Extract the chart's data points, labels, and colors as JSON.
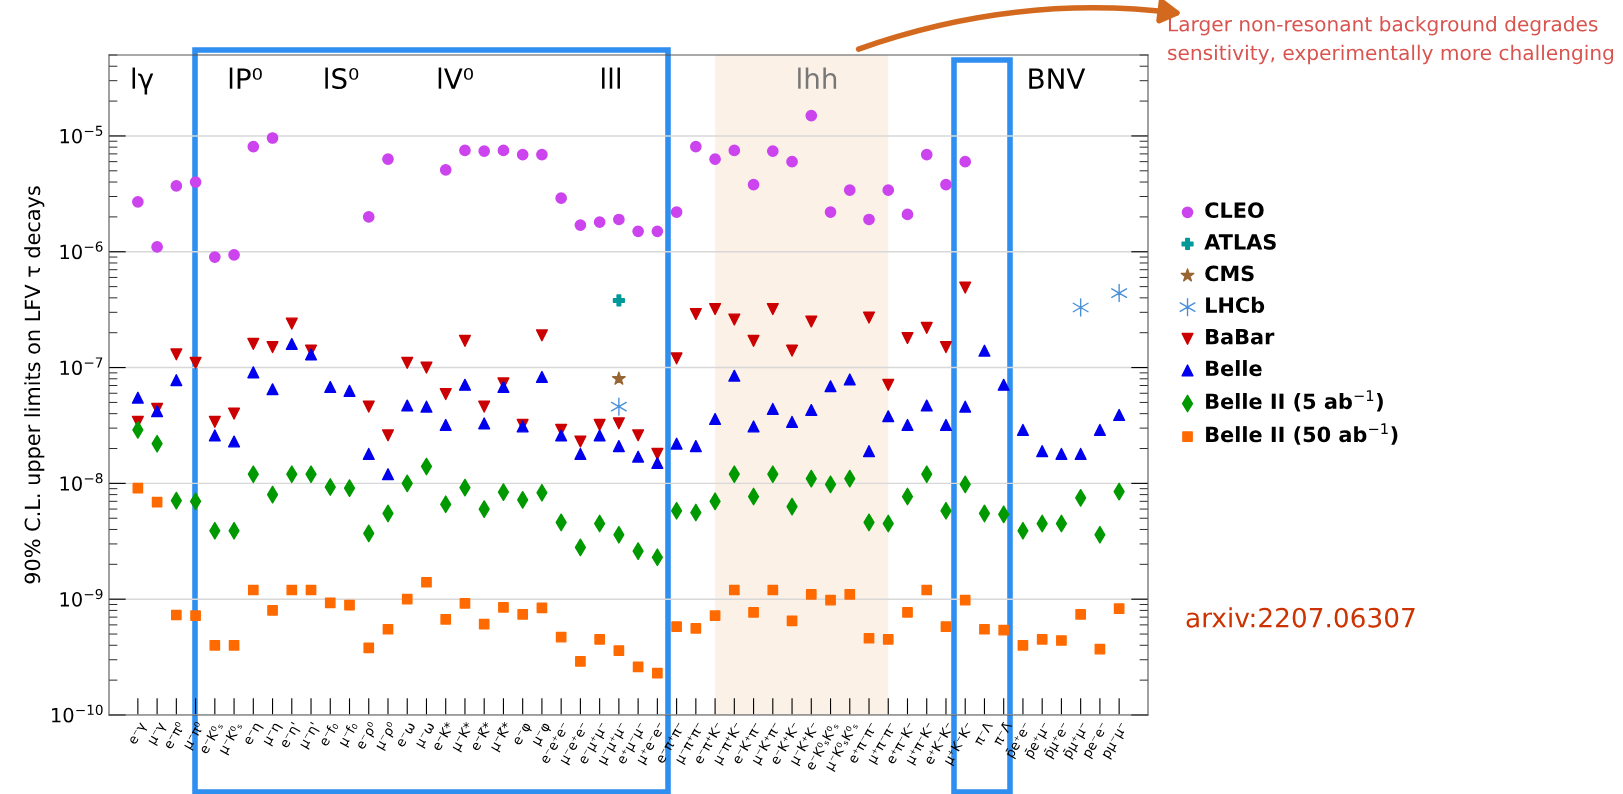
{
  "chart_data": {
    "type": "scatter",
    "ylabel": "90% C.L. upper limits on LFV τ decays",
    "categories": [
      "e⁻γ",
      "μ⁻γ",
      "e⁻π⁰",
      "μ⁻π⁰",
      "e⁻K⁰ₛ",
      "μ⁻K⁰ₛ",
      "e⁻η",
      "μ⁻η",
      "e⁻η'",
      "μ⁻η'",
      "e⁻f₀",
      "μ⁻f₀",
      "e⁻ρ⁰",
      "μ⁻ρ⁰",
      "e⁻ω",
      "μ⁻ω",
      "e⁻K*",
      "μ⁻K*",
      "e⁻K̄*",
      "μ⁻K̄*",
      "e⁻φ",
      "μ⁻φ",
      "e⁻e⁺e⁻",
      "μ⁻e⁺e⁻",
      "e⁻μ⁺μ⁻",
      "μ⁻μ⁺μ⁻",
      "e⁺μ⁻μ⁻",
      "μ⁺e⁻e⁻",
      "e⁻π⁺π⁻",
      "μ⁻π⁺π⁻",
      "e⁻π⁺K⁻",
      "μ⁻π⁺K⁻",
      "e⁻K⁺π⁻",
      "μ⁻K⁺π⁻",
      "e⁻K⁺K⁻",
      "μ⁻K⁺K⁻",
      "e⁻K⁰ₛK⁰ₛ",
      "μ⁻K⁰ₛK⁰ₛ",
      "e⁺π⁻π⁻",
      "μ⁺π⁻π⁻",
      "e⁺π⁻K⁻",
      "μ⁺π⁻K⁻",
      "e⁺K⁻K⁻",
      "μ⁺K⁻K⁻",
      "π⁻Λ",
      "π⁻Λ̄",
      "p̄e⁺e⁻",
      "p̄e⁺μ⁻",
      "p̄μ⁺e⁻",
      "p̄μ⁺μ⁻",
      "pe⁻e⁻",
      "pμ⁻μ⁻"
    ],
    "series": [
      {
        "name": "CLEO",
        "color": "#cc44ee",
        "marker": "circle",
        "values": [
          2.7e-06,
          1.1e-06,
          3.7e-06,
          4e-06,
          9e-07,
          9.4e-07,
          8.1e-06,
          9.6e-06,
          null,
          null,
          null,
          null,
          2e-06,
          6.3e-06,
          null,
          null,
          5.1e-06,
          7.5e-06,
          7.4e-06,
          7.5e-06,
          6.9e-06,
          6.9e-06,
          2.9e-06,
          1.7e-06,
          1.8e-06,
          1.9e-06,
          1.5e-06,
          1.5e-06,
          2.2e-06,
          8.1e-06,
          6.3e-06,
          7.5e-06,
          3.8e-06,
          7.4e-06,
          6e-06,
          1.5e-05,
          2.2e-06,
          3.4e-06,
          1.9e-06,
          3.4e-06,
          2.1e-06,
          6.9e-06,
          3.8e-06,
          6e-06,
          null,
          null,
          null,
          null,
          null,
          null,
          null,
          null
        ]
      },
      {
        "name": "ATLAS",
        "color": "#009999",
        "marker": "plus",
        "values": [
          null,
          null,
          null,
          null,
          null,
          null,
          null,
          null,
          null,
          null,
          null,
          null,
          null,
          null,
          null,
          null,
          null,
          null,
          null,
          null,
          null,
          null,
          null,
          null,
          null,
          3.8e-07,
          null,
          null,
          null,
          null,
          null,
          null,
          null,
          null,
          null,
          null,
          null,
          null,
          null,
          null,
          null,
          null,
          null,
          null,
          null,
          null,
          null,
          null,
          null,
          null,
          null,
          null
        ]
      },
      {
        "name": "CMS",
        "color": "#996633",
        "marker": "star",
        "values": [
          null,
          null,
          null,
          null,
          null,
          null,
          null,
          null,
          null,
          null,
          null,
          null,
          null,
          null,
          null,
          null,
          null,
          null,
          null,
          null,
          null,
          null,
          null,
          null,
          null,
          8e-08,
          null,
          null,
          null,
          null,
          null,
          null,
          null,
          null,
          null,
          null,
          null,
          null,
          null,
          null,
          null,
          null,
          null,
          null,
          null,
          null,
          null,
          null,
          null,
          null,
          null,
          null
        ]
      },
      {
        "name": "LHCb",
        "color": "#4a90d9",
        "marker": "cross",
        "values": [
          null,
          null,
          null,
          null,
          null,
          null,
          null,
          null,
          null,
          null,
          null,
          null,
          null,
          null,
          null,
          null,
          null,
          null,
          null,
          null,
          null,
          null,
          null,
          null,
          null,
          4.6e-08,
          null,
          null,
          null,
          null,
          null,
          null,
          null,
          null,
          null,
          null,
          null,
          null,
          null,
          null,
          null,
          null,
          null,
          null,
          null,
          null,
          null,
          null,
          null,
          3.3e-07,
          null,
          4.4e-07
        ]
      },
      {
        "name": "BaBar",
        "color": "#cc0000",
        "marker": "triangle_down",
        "values": [
          3.4e-08,
          4.4e-08,
          1.3e-07,
          1.1e-07,
          3.4e-08,
          4e-08,
          1.6e-07,
          1.5e-07,
          2.4e-07,
          1.4e-07,
          null,
          null,
          4.6e-08,
          2.6e-08,
          1.1e-07,
          1e-07,
          5.9e-08,
          1.7e-07,
          4.6e-08,
          7.3e-08,
          3.2e-08,
          1.9e-07,
          2.9e-08,
          2.3e-08,
          3.2e-08,
          3.3e-08,
          2.6e-08,
          1.8e-08,
          1.2e-07,
          2.9e-07,
          3.2e-07,
          2.6e-07,
          1.7e-07,
          3.2e-07,
          1.4e-07,
          2.5e-07,
          null,
          null,
          2.7e-07,
          7.1e-08,
          1.8e-07,
          2.2e-07,
          1.5e-07,
          4.9e-07,
          null,
          null,
          null,
          null,
          null,
          null,
          null,
          null
        ]
      },
      {
        "name": "Belle",
        "color": "#0000ee",
        "marker": "triangle",
        "values": [
          5.5e-08,
          4.2e-08,
          7.8e-08,
          null,
          2.6e-08,
          2.3e-08,
          9.1e-08,
          6.5e-08,
          1.6e-07,
          1.3e-07,
          6.8e-08,
          6.3e-08,
          1.8e-08,
          1.2e-08,
          4.7e-08,
          4.6e-08,
          3.2e-08,
          7.1e-08,
          3.3e-08,
          6.8e-08,
          3.1e-08,
          8.3e-08,
          2.6e-08,
          1.8e-08,
          2.6e-08,
          2.1e-08,
          1.7e-08,
          1.5e-08,
          2.2e-08,
          2.1e-08,
          3.6e-08,
          8.5e-08,
          3.1e-08,
          4.4e-08,
          3.4e-08,
          4.3e-08,
          6.9e-08,
          7.9e-08,
          1.9e-08,
          3.8e-08,
          3.2e-08,
          4.7e-08,
          3.2e-08,
          4.6e-08,
          1.4e-07,
          7.1e-08,
          2.9e-08,
          1.9e-08,
          1.8e-08,
          1.8e-08,
          2.9e-08,
          3.9e-08
        ]
      },
      {
        "name": "Belle II (5 ab$^{−1}$)",
        "color": "#009900",
        "marker": "diamond",
        "values": [
          2.9e-08,
          2.2e-08,
          7.1e-09,
          7e-09,
          3.9e-09,
          3.9e-09,
          1.2e-08,
          8e-09,
          1.2e-08,
          1.2e-08,
          9.3e-09,
          9.1e-09,
          3.7e-09,
          5.5e-09,
          1e-08,
          1.4e-08,
          6.6e-09,
          9.2e-09,
          6e-09,
          8.4e-09,
          7.2e-09,
          8.3e-09,
          4.6e-09,
          2.8e-09,
          4.5e-09,
          3.6e-09,
          2.6e-09,
          2.3e-09,
          5.8e-09,
          5.6e-09,
          7e-09,
          1.2e-08,
          7.7e-09,
          1.2e-08,
          6.3e-09,
          1.1e-08,
          9.8e-09,
          1.1e-08,
          4.6e-09,
          4.5e-09,
          7.7e-09,
          1.2e-08,
          5.8e-09,
          9.8e-09,
          5.5e-09,
          5.4e-09,
          3.9e-09,
          4.5e-09,
          4.5e-09,
          7.5e-09,
          3.6e-09,
          8.5e-09
        ]
      },
      {
        "name": "Belle II (50 ab$^{−1}$)",
        "color": "#ff6a00",
        "marker": "square",
        "values": [
          9.1e-09,
          6.9e-09,
          7.3e-10,
          7.2e-10,
          4e-10,
          4e-10,
          1.2e-09,
          8e-10,
          1.2e-09,
          1.2e-09,
          9.3e-10,
          8.9e-10,
          3.8e-10,
          5.5e-10,
          1e-09,
          1.4e-09,
          6.7e-10,
          9.2e-10,
          6.1e-10,
          8.5e-10,
          7.4e-10,
          8.4e-10,
          4.7e-10,
          2.9e-10,
          4.5e-10,
          3.6e-10,
          2.6e-10,
          2.3e-10,
          5.8e-10,
          5.6e-10,
          7.2e-10,
          1.2e-09,
          7.7e-10,
          1.2e-09,
          6.5e-10,
          1.1e-09,
          9.8e-10,
          1.1e-09,
          4.6e-10,
          4.5e-10,
          7.7e-10,
          1.2e-09,
          5.8e-10,
          9.8e-10,
          5.5e-10,
          5.4e-10,
          4e-10,
          4.5e-10,
          4.4e-10,
          7.4e-10,
          3.7e-10,
          8.3e-10
        ]
      }
    ],
    "log": "y",
    "ylim": [
      1e-10,
      5e-05
    ],
    "yticks": [
      {
        "value": 1e-10,
        "label": "10$^{−10}$"
      },
      {
        "value": 1e-09,
        "label": "10$^{−9}$"
      },
      {
        "value": 1e-08,
        "label": "10$^{−8}$"
      },
      {
        "value": 1e-07,
        "label": "10$^{−7}$"
      },
      {
        "value": 1e-06,
        "label": "10$^{−6}$"
      },
      {
        "value": 1e-05,
        "label": "10$^{−5}$"
      }
    ],
    "grid": "y",
    "legend": "right",
    "bands": [
      {
        "axis": "x",
        "from": "e⁻π⁺K⁻",
        "to": "μ⁺π⁻π⁻",
        "color": "#fbf1e6"
      }
    ],
    "annotations": [
      "lγ",
      "lP⁰",
      "lS⁰",
      "lV⁰",
      "lll",
      "lhh",
      "BNV",
      "Larger non-resonant background degrades sensitivity, experimentally more challenging",
      "arxiv:2207.06307"
    ]
  }
}
